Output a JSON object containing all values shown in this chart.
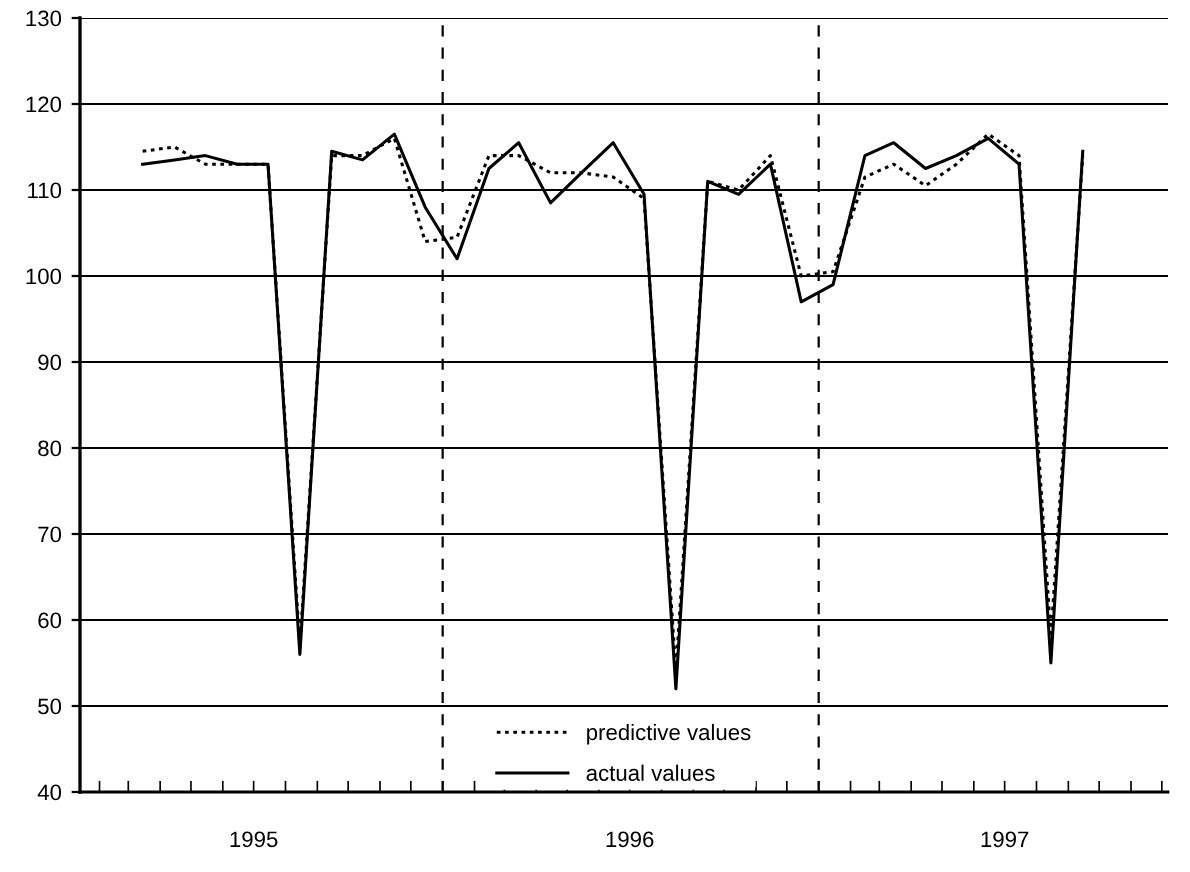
{
  "chart_data": {
    "type": "line",
    "x": [
      "1995-03-15",
      "1995-04-15",
      "1995-05-15",
      "1995-06-15",
      "1995-07-15",
      "1995-08-15",
      "1995-09-15",
      "1995-10-15",
      "1995-11-15",
      "1995-12-15",
      "1996-01-15",
      "1996-02-15",
      "1996-03-15",
      "1996-04-15",
      "1996-05-15",
      "1996-06-15",
      "1996-07-15",
      "1996-08-15",
      "1996-09-15",
      "1996-10-15",
      "1996-11-15",
      "1996-12-15",
      "1997-01-15",
      "1997-02-15",
      "1997-03-15",
      "1997-04-15",
      "1997-05-15",
      "1997-06-15",
      "1997-07-15",
      "1997-08-15",
      "1997-09-15"
    ],
    "series": [
      {
        "name": "predictive values",
        "color": "#000000",
        "line_style": "dotted",
        "values": [
          114.5,
          115,
          113,
          113,
          113,
          57,
          114,
          114,
          116,
          104,
          104.5,
          114,
          114,
          112,
          112,
          111.5,
          109,
          54,
          111,
          110,
          114,
          100,
          100.5,
          111.5,
          113,
          110.5,
          113,
          116.5,
          114,
          58,
          114
        ]
      },
      {
        "name": "actual values",
        "color": "#000000",
        "line_style": "solid",
        "values": [
          113,
          113.5,
          114,
          113,
          113,
          56,
          114.5,
          113.5,
          116.5,
          108,
          102,
          112.5,
          115.5,
          108.5,
          112,
          115.5,
          109.5,
          52,
          111,
          109.5,
          113,
          97,
          99,
          114,
          115.5,
          112.5,
          114,
          116,
          113,
          55,
          114.5
        ]
      }
    ],
    "xlim": [
      "1995-01-13",
      "1997-12-07"
    ],
    "xticks": [
      {
        "value": "1995-02-01",
        "label": null
      },
      {
        "value": "1995-03-01",
        "label": null
      },
      {
        "value": "1995-04-01",
        "label": null
      },
      {
        "value": "1995-05-01",
        "label": null
      },
      {
        "value": "1995-06-01",
        "label": null
      },
      {
        "value": "1995-07-01",
        "label": null
      },
      {
        "value": "1995-08-01",
        "label": null
      },
      {
        "value": "1995-09-01",
        "label": null
      },
      {
        "value": "1995-10-01",
        "label": null
      },
      {
        "value": "1995-11-01",
        "label": null
      },
      {
        "value": "1995-12-01",
        "label": null
      },
      {
        "value": "1996-01-01",
        "label": null
      },
      {
        "value": "1996-02-01",
        "label": null
      },
      {
        "value": "1996-03-01",
        "label": null
      },
      {
        "value": "1996-04-01",
        "label": null
      },
      {
        "value": "1996-05-01",
        "label": null
      },
      {
        "value": "1996-06-01",
        "label": null
      },
      {
        "value": "1996-07-01",
        "label": null
      },
      {
        "value": "1996-08-01",
        "label": null
      },
      {
        "value": "1996-09-01",
        "label": null
      },
      {
        "value": "1996-10-01",
        "label": null
      },
      {
        "value": "1996-11-01",
        "label": null
      },
      {
        "value": "1996-12-01",
        "label": null
      },
      {
        "value": "1997-01-01",
        "label": null
      },
      {
        "value": "1997-02-01",
        "label": null
      },
      {
        "value": "1997-03-01",
        "label": null
      },
      {
        "value": "1997-04-01",
        "label": null
      },
      {
        "value": "1997-05-01",
        "label": null
      },
      {
        "value": "1997-06-01",
        "label": null
      },
      {
        "value": "1997-07-01",
        "label": null
      },
      {
        "value": "1997-08-01",
        "label": null
      },
      {
        "value": "1997-09-01",
        "label": null
      },
      {
        "value": "1997-10-01",
        "label": null
      },
      {
        "value": "1997-11-01",
        "label": null
      },
      {
        "value": "1997-12-01",
        "label": null
      },
      {
        "value": "1995-07-01",
        "label": "1995"
      },
      {
        "value": "1996-07-01",
        "label": "1996"
      },
      {
        "value": "1997-07-01",
        "label": "1997"
      }
    ],
    "ylim": [
      40,
      130
    ],
    "yticks": [
      40,
      50,
      60,
      70,
      80,
      90,
      100,
      110,
      120,
      130
    ],
    "ref_lines": [
      {
        "axis": "x",
        "value": "1996-01-01",
        "line_style": "dashed"
      },
      {
        "axis": "x",
        "value": "1997-01-01",
        "line_style": "dashed"
      }
    ],
    "grid": "y",
    "legend": "bottom",
    "marker": "none"
  }
}
